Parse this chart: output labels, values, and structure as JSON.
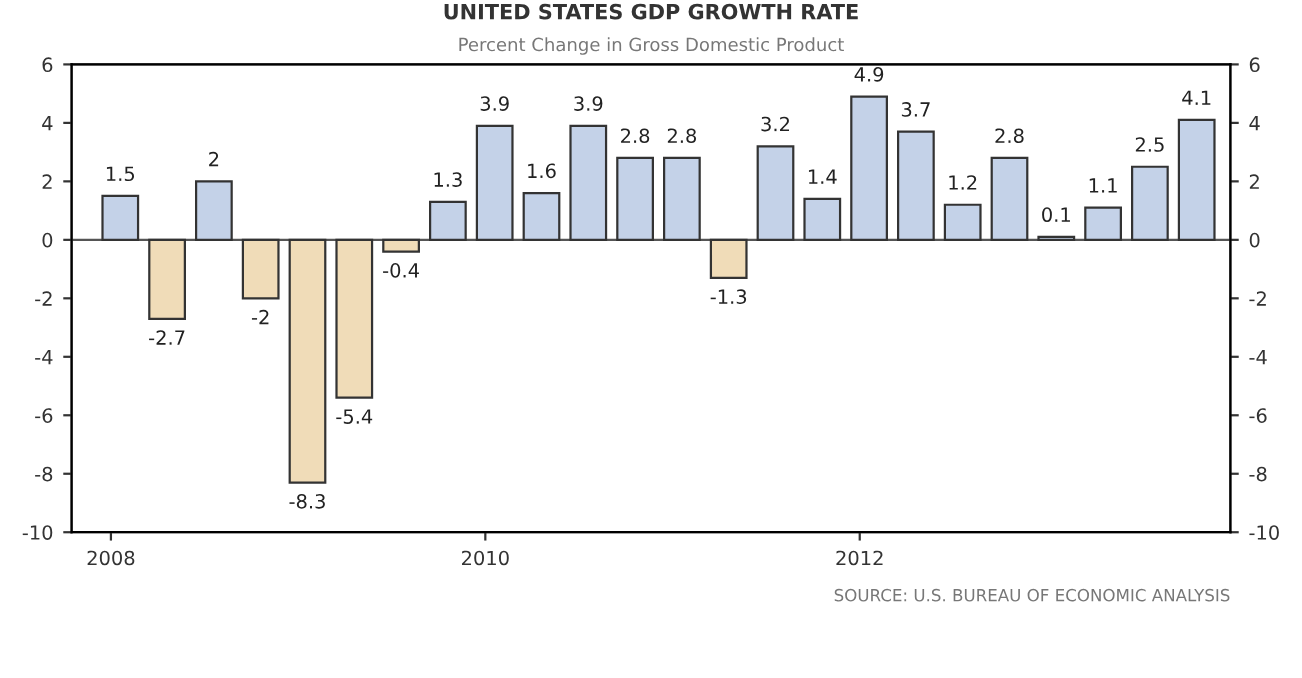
{
  "chart_data": {
    "type": "bar",
    "title": "UNITED STATES GDP GROWTH RATE",
    "subtitle": "Percent Change in Gross Domestic Product",
    "x": [
      2008.05,
      2008.3,
      2008.55,
      2008.8,
      2009.05,
      2009.3,
      2009.55,
      2009.8,
      2010.05,
      2010.3,
      2010.55,
      2010.8,
      2011.05,
      2011.3,
      2011.55,
      2011.8,
      2012.05,
      2012.3,
      2012.55,
      2012.8,
      2013.05,
      2013.3,
      2013.55,
      2013.8
    ],
    "values": [
      1.5,
      -2.7,
      2,
      -2,
      -8.3,
      -5.4,
      -0.4,
      1.3,
      3.9,
      1.6,
      3.9,
      2.8,
      2.8,
      -1.3,
      3.2,
      1.4,
      4.9,
      3.7,
      1.2,
      2.8,
      0.1,
      1.1,
      2.5,
      4.1
    ],
    "colors": [
      "#c4d2e8",
      "#f0dcb8",
      "#c4d2e8",
      "#f0dcb8",
      "#f0dcb8",
      "#f0dcb8",
      "#f0dcb8",
      "#c4d2e8",
      "#c4d2e8",
      "#c4d2e8",
      "#c4d2e8",
      "#c4d2e8",
      "#c4d2e8",
      "#f0dcb8",
      "#c4d2e8",
      "#c4d2e8",
      "#c4d2e8",
      "#c4d2e8",
      "#c4d2e8",
      "#c4d2e8",
      "#c4d2e8",
      "#c4d2e8",
      "#c4d2e8",
      "#c4d2e8"
    ],
    "data_labels": true,
    "xlim": [
      2007.79,
      2013.98
    ],
    "xticks": [
      2008,
      2010,
      2012
    ],
    "ylim": [
      -10,
      6
    ],
    "yticks": [
      -10,
      -8,
      -6,
      -4,
      -2,
      0,
      2,
      4,
      6
    ],
    "y2lim": [
      -10,
      6
    ],
    "y2ticks": [
      -10,
      -8,
      -6,
      -4,
      -2,
      0,
      2,
      4,
      6
    ],
    "ref_lines": [
      {
        "axis": "y",
        "value": 0,
        "color": "#555555"
      }
    ],
    "grid": false,
    "annotations": [
      "SOURCE: U.S. BUREAU OF ECONOMIC ANALYSIS"
    ]
  }
}
